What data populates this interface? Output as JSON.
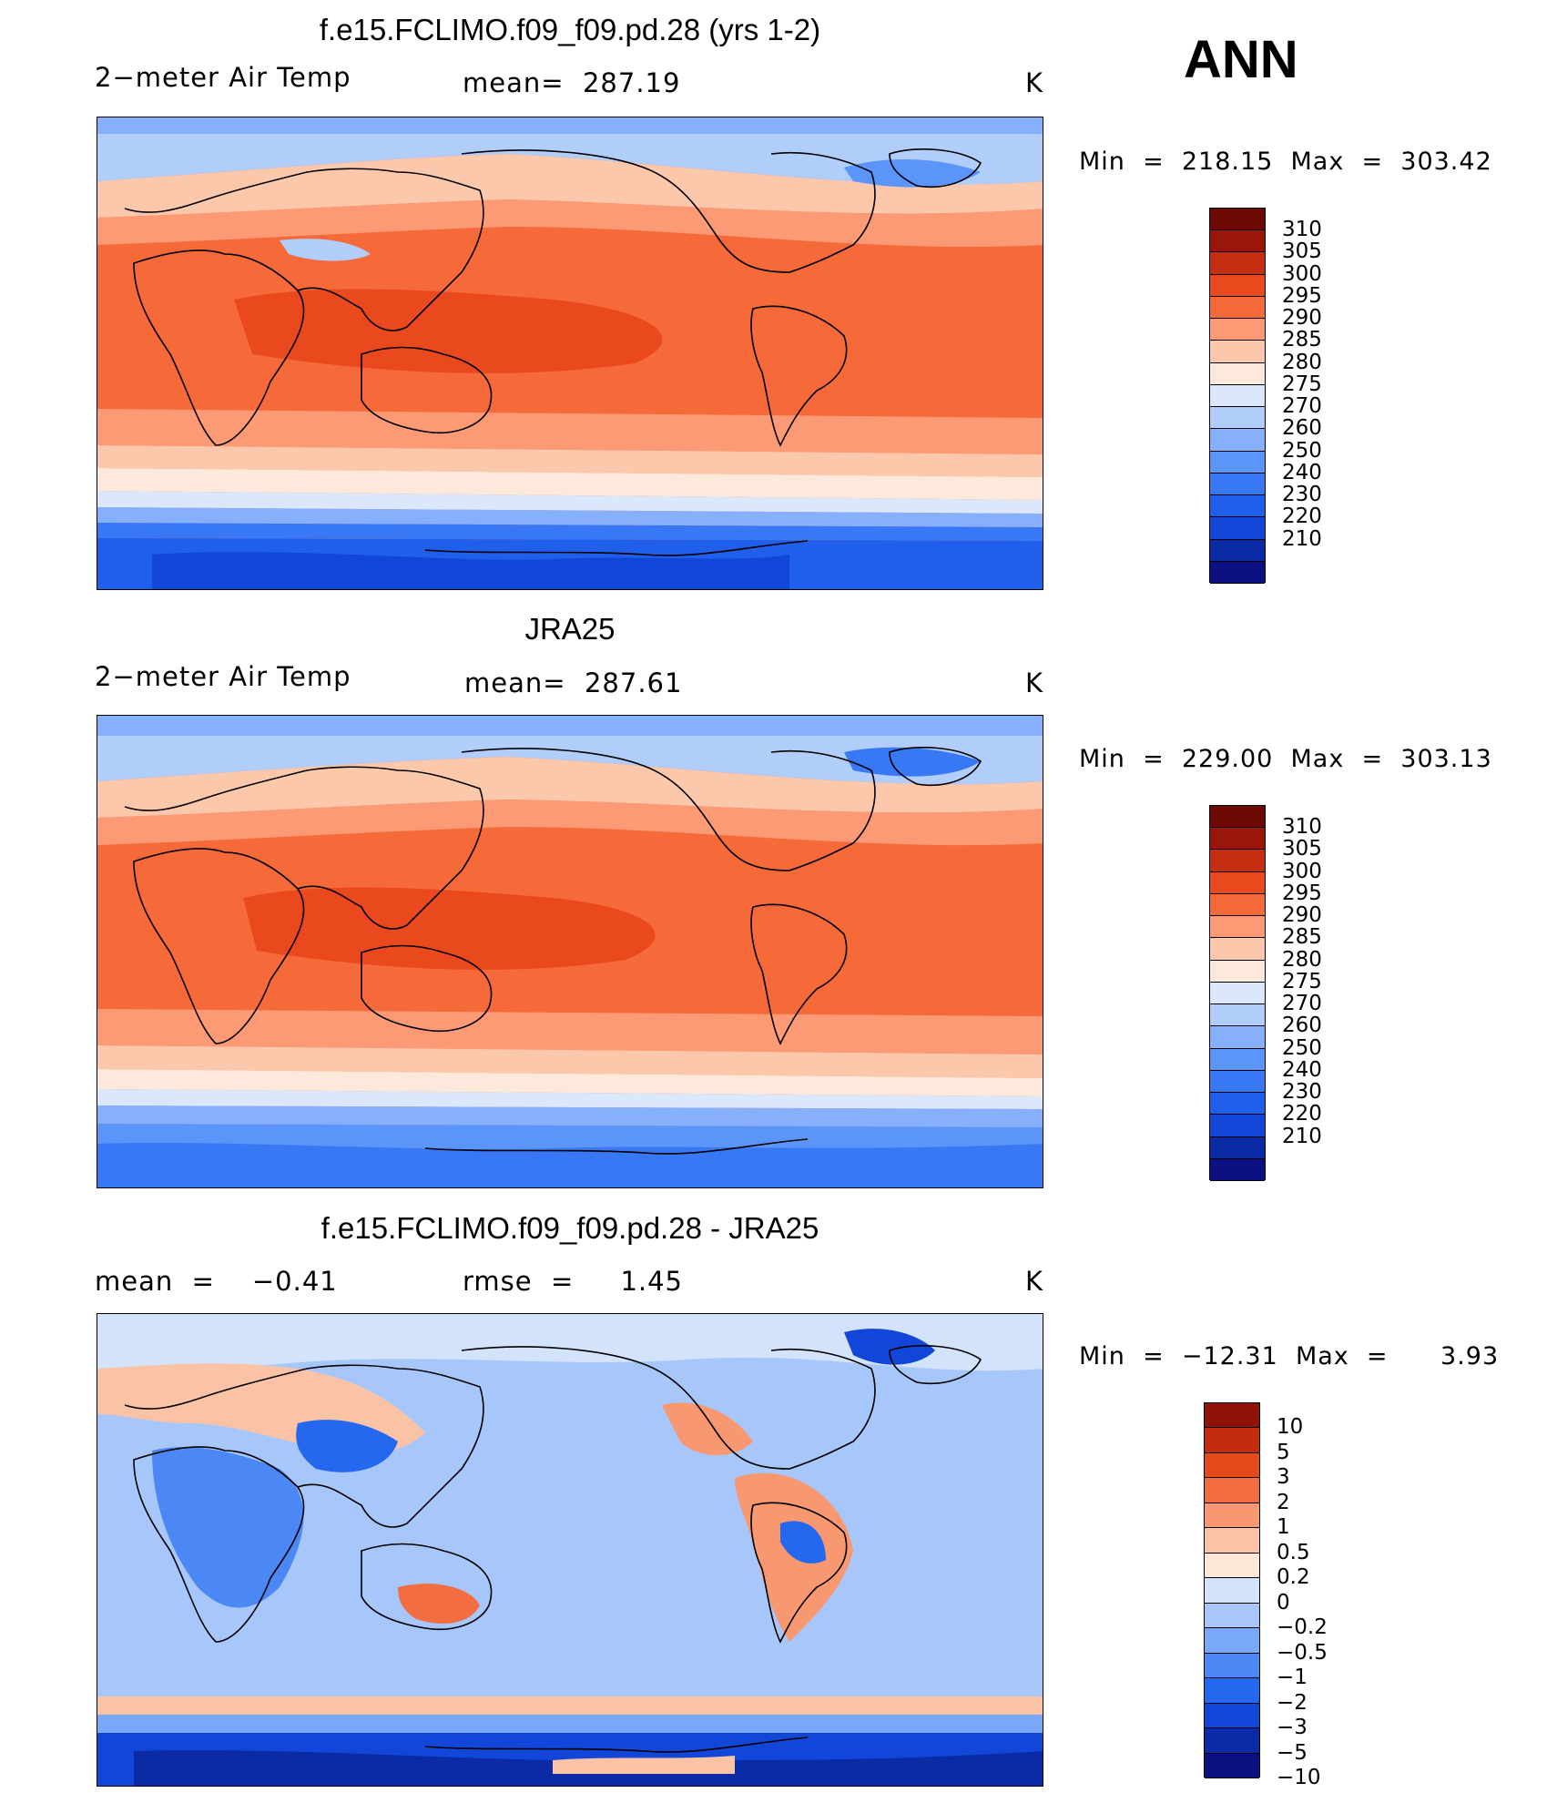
{
  "season": "ANN",
  "palettes": {
    "abs": [
      "#0d1080",
      "#0a2aa6",
      "#1146d8",
      "#1f5fec",
      "#3878f4",
      "#5b95fa",
      "#86b0fb",
      "#b1cdfa",
      "#dbe8fc",
      "#fde9dc",
      "#fcc8ac",
      "#fb9a74",
      "#f66a3a",
      "#e9491c",
      "#c72d10",
      "#9a150a",
      "#6e0a04"
    ],
    "diff": [
      "#0d1080",
      "#0a2aa6",
      "#1146d8",
      "#2468f0",
      "#4b88f6",
      "#7aa8f8",
      "#a7c6fa",
      "#d4e3fc",
      "#fde6d8",
      "#fbc3a6",
      "#f89870",
      "#f26d40",
      "#e34a1c",
      "#c42c0e",
      "#8f1308"
    ]
  },
  "panels": [
    {
      "id": "model",
      "title": "f.e15.FCLIMO.f09_f09.pd.28 (yrs 1-2)",
      "left_text": "2−meter Air Temp",
      "center_text": "mean=  287.19",
      "units": "K",
      "min_max": "Min  =  218.15  Max  =  303.42",
      "colorbar_labels": [
        "310",
        "305",
        "300",
        "295",
        "290",
        "285",
        "280",
        "275",
        "270",
        "260",
        "250",
        "240",
        "230",
        "220",
        "210"
      ]
    },
    {
      "id": "obs",
      "title": "JRA25",
      "left_text": "2−meter Air Temp",
      "center_text": "mean=  287.61",
      "units": "K",
      "min_max": "Min  =  229.00  Max  =  303.13",
      "colorbar_labels": [
        "310",
        "305",
        "300",
        "295",
        "290",
        "285",
        "280",
        "275",
        "270",
        "260",
        "250",
        "240",
        "230",
        "220",
        "210"
      ]
    },
    {
      "id": "diff",
      "title": "f.e15.FCLIMO.f09_f09.pd.28 - JRA25",
      "left_text": "mean  =    −0.41",
      "center_text": "rmse  =     1.45",
      "units": "K",
      "min_max": "Min  =  −12.31  Max  =      3.93",
      "colorbar_labels": [
        "10",
        "5",
        "3",
        "2",
        "1",
        "0.5",
        "0.2",
        "0",
        "−0.2",
        "−0.5",
        "−1",
        "−2",
        "−3",
        "−5",
        "−10"
      ]
    }
  ]
}
